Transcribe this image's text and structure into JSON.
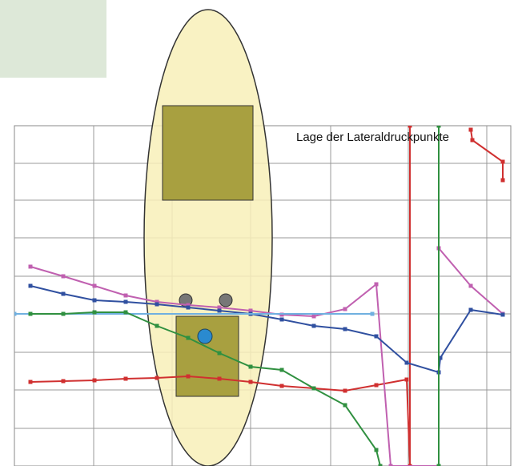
{
  "chart_data": {
    "type": "line",
    "title": "Lage der Lateraldruckpunkte",
    "xlim": [
      0,
      620
    ],
    "ylim": [
      0,
      425
    ],
    "series": [
      {
        "name": null,
        "color": "#d03030",
        "x": [
          20,
          61,
          100,
          139,
          178,
          217,
          256,
          295,
          334,
          374,
          413,
          452,
          490,
          494,
          494,
          null,
          570,
          572,
          610,
          610
        ],
        "values": [
          105,
          106,
          107,
          109,
          110,
          112,
          109,
          105,
          100,
          97,
          94,
          101,
          108,
          0,
          425,
          null,
          420,
          407,
          380,
          357
        ]
      },
      {
        "name": null,
        "color": "#c060b0",
        "x": [
          20,
          61,
          100,
          139,
          178,
          217,
          256,
          295,
          334,
          374,
          413,
          452,
          470,
          530,
          530,
          570,
          610
        ],
        "values": [
          249,
          237,
          225,
          213,
          205,
          201,
          198,
          194,
          189,
          187,
          196,
          227,
          0,
          0,
          272,
          225,
          190
        ]
      },
      {
        "name": null,
        "color": "#3050a0",
        "x": [
          20,
          61,
          100,
          139,
          178,
          217,
          256,
          295,
          334,
          374,
          413,
          452,
          490,
          530,
          532,
          570,
          610
        ],
        "values": [
          225,
          215,
          207,
          205,
          202,
          198,
          194,
          190,
          183,
          175,
          171,
          162,
          129,
          117,
          135,
          195,
          189
        ]
      },
      {
        "name": null,
        "color": "#70b0e0",
        "x": [
          0,
          447
        ],
        "values": [
          190,
          190
        ]
      },
      {
        "name": null,
        "color": "#309040",
        "x": [
          20,
          61,
          100,
          139,
          178,
          217,
          256,
          295,
          334,
          374,
          413,
          452,
          457,
          null,
          530,
          530
        ],
        "values": [
          190,
          190,
          192,
          192,
          175,
          160,
          141,
          124,
          120,
          97,
          76,
          20,
          0,
          null,
          0,
          425
        ]
      }
    ]
  }
}
